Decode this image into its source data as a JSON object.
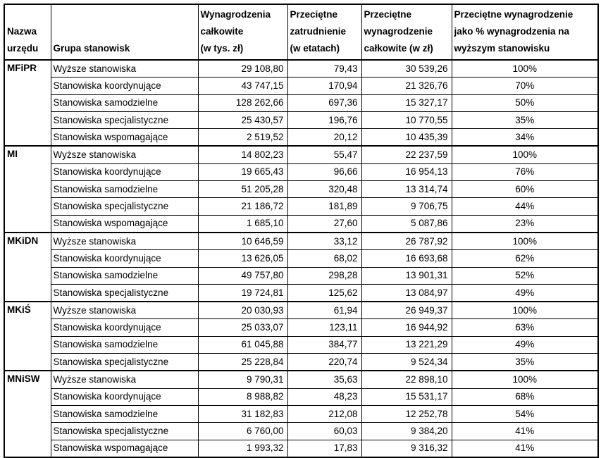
{
  "header": [
    [
      "Nazwa",
      "urzędu"
    ],
    [
      "Grupa stanowisk"
    ],
    [
      "Wynagrodzenia",
      "całkowite",
      "(w tys. zł)"
    ],
    [
      "Przeciętne",
      "zatrudnienie",
      "(w etatach)"
    ],
    [
      "Przeciętne",
      "wynagrodzenie",
      "całkowite (w zł)"
    ],
    [
      "Przeciętne wynagrodzenie",
      "jako % wynagrodzenia na",
      "wyższym stanowisku"
    ]
  ],
  "groups": [
    {
      "name": "MFiPR",
      "rows": [
        [
          "Wyższe stanowiska",
          "29 108,80",
          "79,43",
          "30 539,26",
          "100%"
        ],
        [
          "Stanowiska koordynujące",
          "43 747,15",
          "170,94",
          "21 326,76",
          "70%"
        ],
        [
          "Stanowiska samodzielne",
          "128 262,66",
          "697,36",
          "15 327,17",
          "50%"
        ],
        [
          "Stanowiska specjalistyczne",
          "25 430,57",
          "196,76",
          "10 770,55",
          "35%"
        ],
        [
          "Stanowiska wspomagające",
          "2 519,52",
          "20,12",
          "10 435,39",
          "34%"
        ]
      ]
    },
    {
      "name": "MI",
      "rows": [
        [
          "Wyższe stanowiska",
          "14 802,23",
          "55,47",
          "22 237,59",
          "100%"
        ],
        [
          "Stanowiska koordynujące",
          "19 665,43",
          "96,66",
          "16 954,13",
          "76%"
        ],
        [
          "Stanowiska samodzielne",
          "51 205,28",
          "320,48",
          "13 314,74",
          "60%"
        ],
        [
          "Stanowiska specjalistyczne",
          "21 186,72",
          "181,89",
          "9 706,75",
          "44%"
        ],
        [
          "Stanowiska wspomagające",
          "1 685,10",
          "27,60",
          "5 087,86",
          "23%"
        ]
      ]
    },
    {
      "name": "MKiDN",
      "rows": [
        [
          "Wyższe stanowiska",
          "10 646,59",
          "33,12",
          "26 787,92",
          "100%"
        ],
        [
          "Stanowiska koordynujące",
          "13 626,05",
          "68,02",
          "16 693,68",
          "62%"
        ],
        [
          "Stanowiska samodzielne",
          "49 757,80",
          "298,28",
          "13 901,31",
          "52%"
        ],
        [
          "Stanowiska specjalistyczne",
          "19 724,81",
          "125,62",
          "13 084,97",
          "49%"
        ]
      ]
    },
    {
      "name": "MKiŚ",
      "rows": [
        [
          "Wyższe stanowiska",
          "20 030,93",
          "61,94",
          "26 949,37",
          "100%"
        ],
        [
          "Stanowiska koordynujące",
          "25 033,07",
          "123,11",
          "16 944,92",
          "63%"
        ],
        [
          "Stanowiska samodzielne",
          "61 045,88",
          "384,77",
          "13 221,29",
          "49%"
        ],
        [
          "Stanowiska specjalistyczne",
          "25 228,84",
          "220,74",
          "9 524,34",
          "35%"
        ]
      ]
    },
    {
      "name": "MNiSW",
      "rows": [
        [
          "Wyższe stanowiska",
          "9 790,31",
          "35,63",
          "22 898,10",
          "100%"
        ],
        [
          "Stanowiska koordynujące",
          "8 988,82",
          "48,23",
          "15 531,17",
          "68%"
        ],
        [
          "Stanowiska samodzielne",
          "31 182,83",
          "212,08",
          "12 252,78",
          "54%"
        ],
        [
          "Stanowiska specjalistyczne",
          "6 760,00",
          "60,03",
          "9 384,20",
          "41%"
        ],
        [
          "Stanowiska wspomagające",
          "1 993,32",
          "17,83",
          "9 316,32",
          "41%"
        ]
      ]
    }
  ]
}
